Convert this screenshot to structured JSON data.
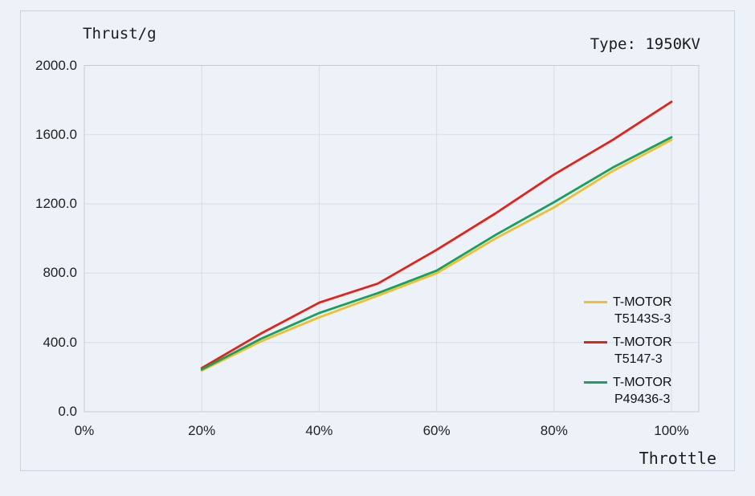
{
  "header": {
    "title": "Thrust/g",
    "type_label": "Type: 1950KV"
  },
  "chart_data": {
    "type": "line",
    "title": "Thrust/g",
    "xlabel": "Throttle",
    "ylabel": "Thrust/g",
    "grid": true,
    "legend_position": "right-lower",
    "ylim": [
      0,
      2000
    ],
    "y_ticks": [
      0,
      400,
      800,
      1200,
      1600,
      2000
    ],
    "y_tick_labels": [
      "0.0",
      "400.0",
      "800.0",
      "1200.0",
      "1600.0",
      "2000.0"
    ],
    "x_ticks_percent": [
      0,
      20,
      40,
      60,
      80,
      100
    ],
    "x_tick_labels": [
      "0%",
      "20%",
      "40%",
      "60%",
      "80%",
      "100%"
    ],
    "x_percent": [
      20,
      30,
      40,
      50,
      60,
      70,
      80,
      90,
      100
    ],
    "series": [
      {
        "name": "T-MOTOR T5143S-3",
        "legend_lines": [
          "T-MOTOR",
          "T5143S-3"
        ],
        "color": "#f0be30",
        "values": [
          238,
          405,
          545,
          670,
          800,
          1000,
          1180,
          1390,
          1570
        ]
      },
      {
        "name": "T-MOTOR T5147-3",
        "legend_lines": [
          "T-MOTOR",
          "T5147-3"
        ],
        "color": "#e2231a",
        "values": [
          252,
          450,
          630,
          740,
          935,
          1145,
          1370,
          1570,
          1790
        ]
      },
      {
        "name": "T-MOTOR P49436-3",
        "legend_lines": [
          "T-MOTOR",
          "P49436-3"
        ],
        "color": "#17a05e",
        "values": [
          244,
          420,
          570,
          685,
          815,
          1020,
          1210,
          1410,
          1585
        ]
      }
    ]
  }
}
